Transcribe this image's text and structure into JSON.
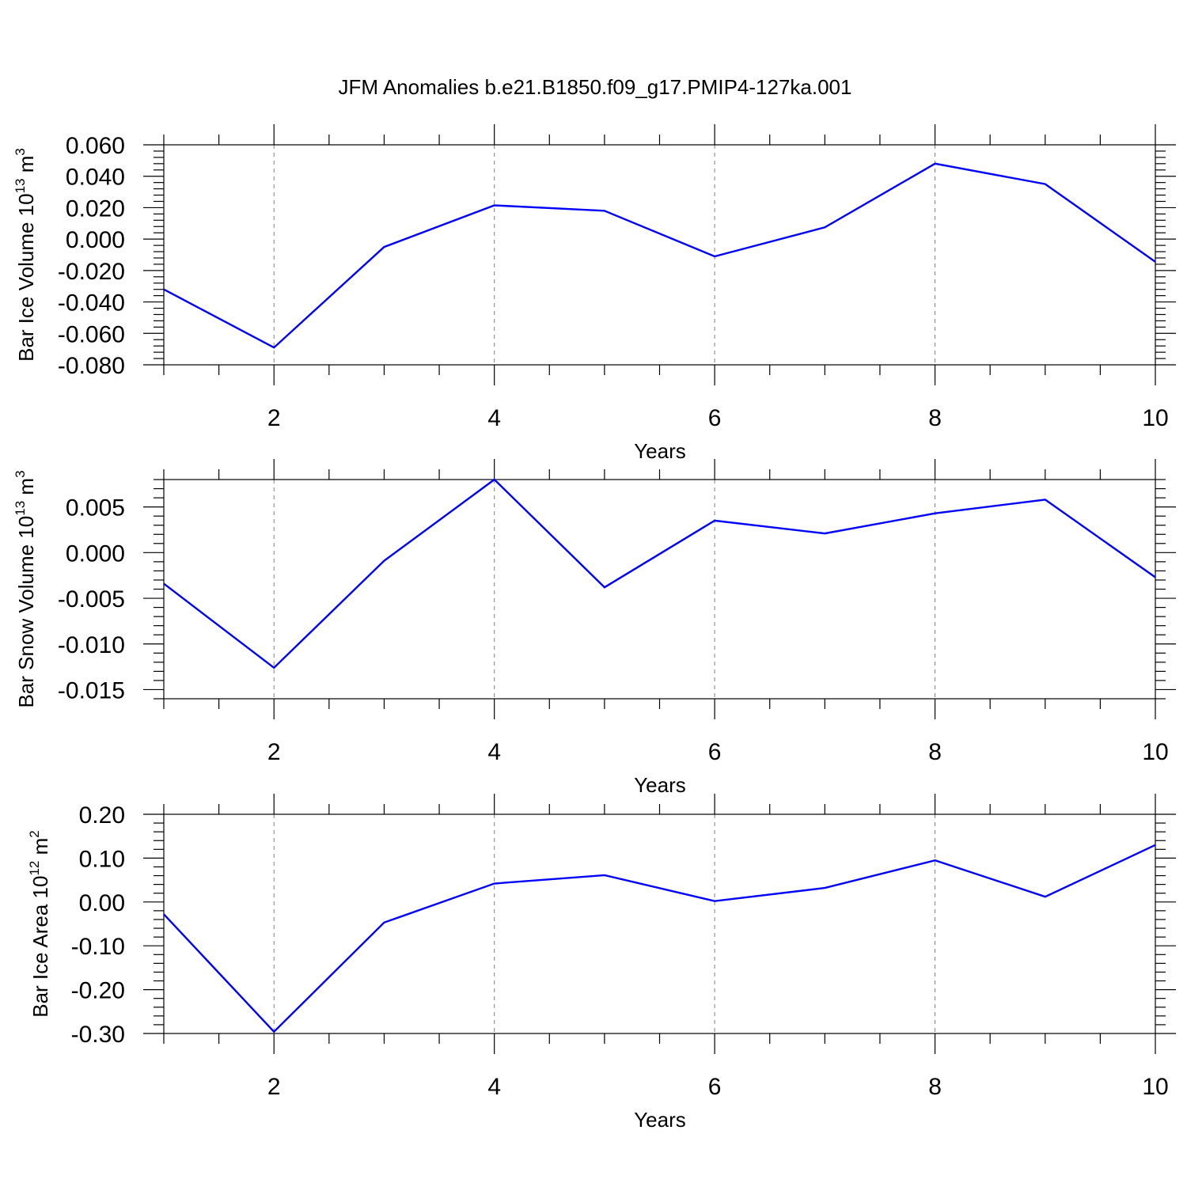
{
  "title": "JFM Anomalies b.e21.B1850.f09_g17.PMIP4-127ka.001",
  "chart_data": [
    {
      "type": "line",
      "xlabel": "Years",
      "ylabel": {
        "main": "Bar Ice Volume 10",
        "exponent": "13",
        "unit": " m",
        "unit_exponent": "3"
      },
      "xlim": [
        1,
        10
      ],
      "ylim": [
        -0.08,
        0.06
      ],
      "xticks": [
        2,
        4,
        6,
        8,
        10
      ],
      "xtick_labels": [
        "2",
        "4",
        "6",
        "8",
        "10"
      ],
      "yticks": [
        0.06,
        0.04,
        0.02,
        0.0,
        -0.02,
        -0.04,
        -0.06,
        -0.08
      ],
      "ytick_labels": [
        "0.060",
        "0.040",
        "0.020",
        "0.000",
        "-0.020",
        "-0.040",
        "-0.060",
        "-0.080"
      ],
      "grid": "vertical dashed at major x ticks",
      "series": [
        {
          "color": "#0000ff",
          "x": [
            1,
            2,
            3,
            4,
            5,
            6,
            7,
            8,
            9,
            10
          ],
          "values": [
            -0.032,
            -0.069,
            -0.005,
            0.0215,
            0.018,
            -0.011,
            0.0075,
            0.048,
            0.035,
            -0.0145
          ]
        }
      ]
    },
    {
      "type": "line",
      "xlabel": "Years",
      "ylabel": {
        "main": "Bar Snow Volume 10",
        "exponent": "13",
        "unit": " m",
        "unit_exponent": "3"
      },
      "xlim": [
        1,
        10
      ],
      "ylim": [
        -0.016,
        0.008
      ],
      "xticks": [
        2,
        4,
        6,
        8,
        10
      ],
      "xtick_labels": [
        "2",
        "4",
        "6",
        "8",
        "10"
      ],
      "yticks": [
        0.005,
        0.0,
        -0.005,
        -0.01,
        -0.015
      ],
      "ytick_labels": [
        "0.005",
        "0.000",
        "-0.005",
        "-0.010",
        "-0.015"
      ],
      "grid": "vertical dashed at major x ticks",
      "series": [
        {
          "color": "#0000ff",
          "x": [
            1,
            2,
            3,
            4,
            5,
            6,
            7,
            8,
            9,
            10
          ],
          "values": [
            -0.0034,
            -0.0126,
            -0.0009,
            0.008,
            -0.0038,
            0.0035,
            0.0021,
            0.0043,
            0.0058,
            -0.0027
          ]
        }
      ]
    },
    {
      "type": "line",
      "xlabel": "Years",
      "ylabel": {
        "main": "Bar Ice Area 10",
        "exponent": "12",
        "unit": " m",
        "unit_exponent": "2"
      },
      "xlim": [
        1,
        10
      ],
      "ylim": [
        -0.3,
        0.2
      ],
      "xticks": [
        2,
        4,
        6,
        8,
        10
      ],
      "xtick_labels": [
        "2",
        "4",
        "6",
        "8",
        "10"
      ],
      "yticks": [
        0.2,
        0.1,
        0.0,
        -0.1,
        -0.2,
        -0.3
      ],
      "ytick_labels": [
        "0.20",
        "0.10",
        "0.00",
        "-0.10",
        "-0.20",
        "-0.30"
      ],
      "grid": "vertical dashed at major x ticks",
      "series": [
        {
          "color": "#0000ff",
          "x": [
            1,
            2,
            3,
            4,
            5,
            6,
            7,
            8,
            9,
            10
          ],
          "values": [
            -0.028,
            -0.296,
            -0.047,
            0.042,
            0.061,
            0.002,
            0.032,
            0.095,
            0.012,
            0.13
          ]
        }
      ]
    }
  ]
}
